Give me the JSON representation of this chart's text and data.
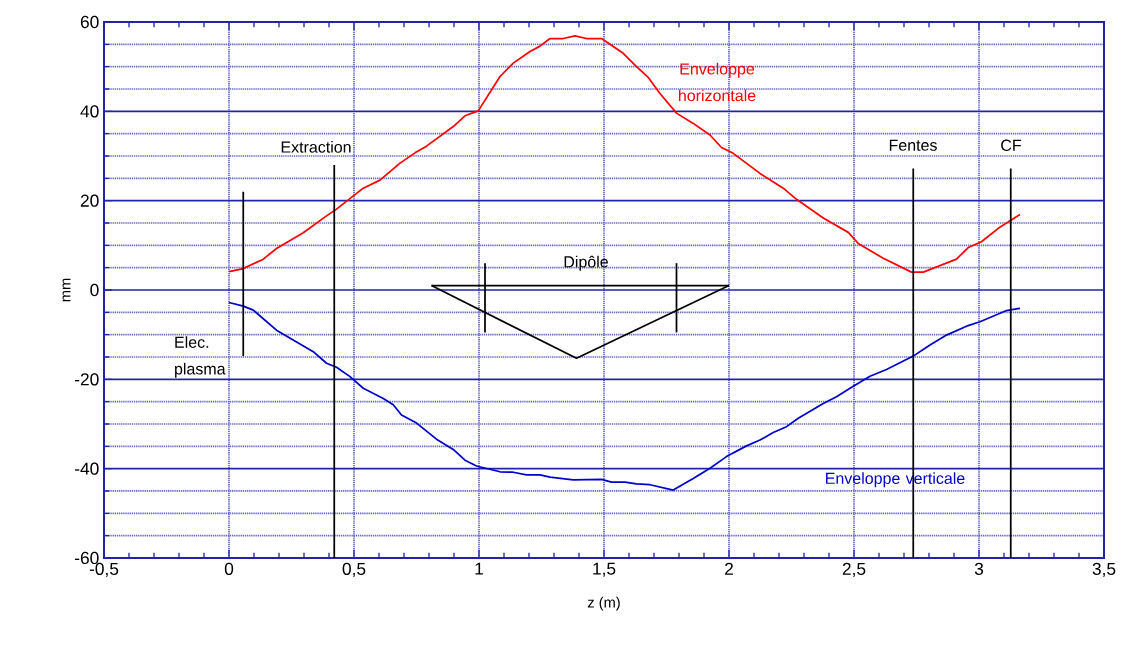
{
  "chart_data": {
    "type": "line",
    "xlabel": "z (m)",
    "ylabel": "mm",
    "xlim": [
      -0.5,
      3.5
    ],
    "ylim": [
      -60,
      60
    ],
    "xticks": [
      {
        "value": -0.5,
        "label": "-0,5"
      },
      0,
      {
        "value": 0.5,
        "label": "0,5"
      },
      1,
      {
        "value": 1.5,
        "label": "1,5"
      },
      2,
      {
        "value": 2.5,
        "label": "2,5"
      },
      3,
      {
        "value": 3.5,
        "label": "3,5"
      }
    ],
    "yticks": [
      -60,
      -40,
      -20,
      0,
      20,
      40,
      60
    ],
    "grid": true,
    "marker": "none",
    "line_style": "solid",
    "series": [
      {
        "name": "Enveloppe horizontale",
        "color": "#ff0000",
        "x": [
          0,
          0.057,
          0.137,
          0.19,
          0.297,
          0.39,
          0.43,
          0.537,
          0.604,
          0.684,
          0.744,
          0.79,
          0.897,
          0.944,
          0.997,
          1.084,
          1.137,
          1.204,
          1.244,
          1.284,
          1.337,
          1.384,
          1.43,
          1.49,
          1.577,
          1.63,
          1.677,
          1.724,
          1.79,
          1.857,
          1.924,
          1.97,
          2.017,
          2.124,
          2.217,
          2.27,
          2.377,
          2.477,
          2.517,
          2.617,
          2.73,
          2.777,
          2.91,
          2.957,
          3.01,
          3.077,
          3.164
        ],
        "values": [
          4.1,
          4.8,
          6.9,
          9.3,
          12.8,
          16.6,
          18.1,
          22.8,
          24.6,
          28.4,
          30.7,
          32.2,
          36.6,
          39,
          40.1,
          47.8,
          50.8,
          53.4,
          54.6,
          56.3,
          56.3,
          56.9,
          56.3,
          56.3,
          53,
          50,
          47.6,
          44,
          39.6,
          37.3,
          34.7,
          31.9,
          30.6,
          26.1,
          22.8,
          20.3,
          16.1,
          12.9,
          10.4,
          7.1,
          4,
          4,
          6.9,
          9.5,
          10.8,
          13.8,
          16.9
        ]
      },
      {
        "name": "Enveloppe verticale",
        "color": "#0000cc",
        "x": [
          0,
          0.057,
          0.097,
          0.19,
          0.337,
          0.39,
          0.43,
          0.484,
          0.537,
          0.617,
          0.657,
          0.69,
          0.75,
          0.83,
          0.897,
          0.944,
          0.99,
          1.084,
          1.137,
          1.19,
          1.244,
          1.284,
          1.377,
          1.49,
          1.53,
          1.584,
          1.63,
          1.684,
          1.777,
          1.857,
          1.924,
          1.99,
          2.07,
          2.124,
          2.177,
          2.23,
          2.277,
          2.377,
          2.43,
          2.484,
          2.564,
          2.63,
          2.737,
          2.804,
          2.87,
          2.95,
          3.004,
          3.11,
          3.164
        ],
        "values": [
          -2.8,
          -3.6,
          -4.5,
          -9,
          -13.8,
          -16.4,
          -17.3,
          -19.4,
          -22,
          -24.3,
          -25.7,
          -28,
          -29.8,
          -33.4,
          -35.7,
          -38.1,
          -39.4,
          -40.7,
          -40.8,
          -41.4,
          -41.4,
          -41.9,
          -42.5,
          -42.4,
          -43,
          -43,
          -43.4,
          -43.6,
          -44.8,
          -42.2,
          -39.9,
          -37.3,
          -34.9,
          -33.6,
          -31.9,
          -30.6,
          -28.7,
          -25.4,
          -23.9,
          -22,
          -19.3,
          -17.8,
          -14.8,
          -12.3,
          -10.1,
          -8.1,
          -7.1,
          -4.6,
          -4.1
        ]
      },
      {
        "name": "Elec. plasma",
        "color": "#000000",
        "x": [
          0.057,
          0.057
        ],
        "values": [
          22,
          -14.8
        ]
      },
      {
        "name": "Extraction",
        "color": "#000000",
        "x": [
          0.421,
          0.421
        ],
        "values": [
          28,
          -60
        ]
      },
      {
        "name": "Dipôle",
        "color": "#000000",
        "x": [
          0.81,
          2.0
        ],
        "values": [
          1,
          1
        ]
      },
      {
        "color": "#000000",
        "x": [
          0.81,
          1.39,
          2.0
        ],
        "values": [
          1,
          -15.3,
          1
        ]
      },
      {
        "color": "#000000",
        "x": [
          1.024,
          1.024
        ],
        "values": [
          6,
          -9.5
        ]
      },
      {
        "color": "#000000",
        "x": [
          1.79,
          1.79
        ],
        "values": [
          6,
          -9.5
        ]
      },
      {
        "name": "Fentes",
        "color": "#000000",
        "x": [
          2.737,
          2.737
        ],
        "values": [
          27.2,
          -60
        ]
      },
      {
        "name": "CF",
        "color": "#000000",
        "x": [
          3.127,
          3.127
        ],
        "values": [
          27.2,
          -60
        ]
      }
    ]
  }
}
